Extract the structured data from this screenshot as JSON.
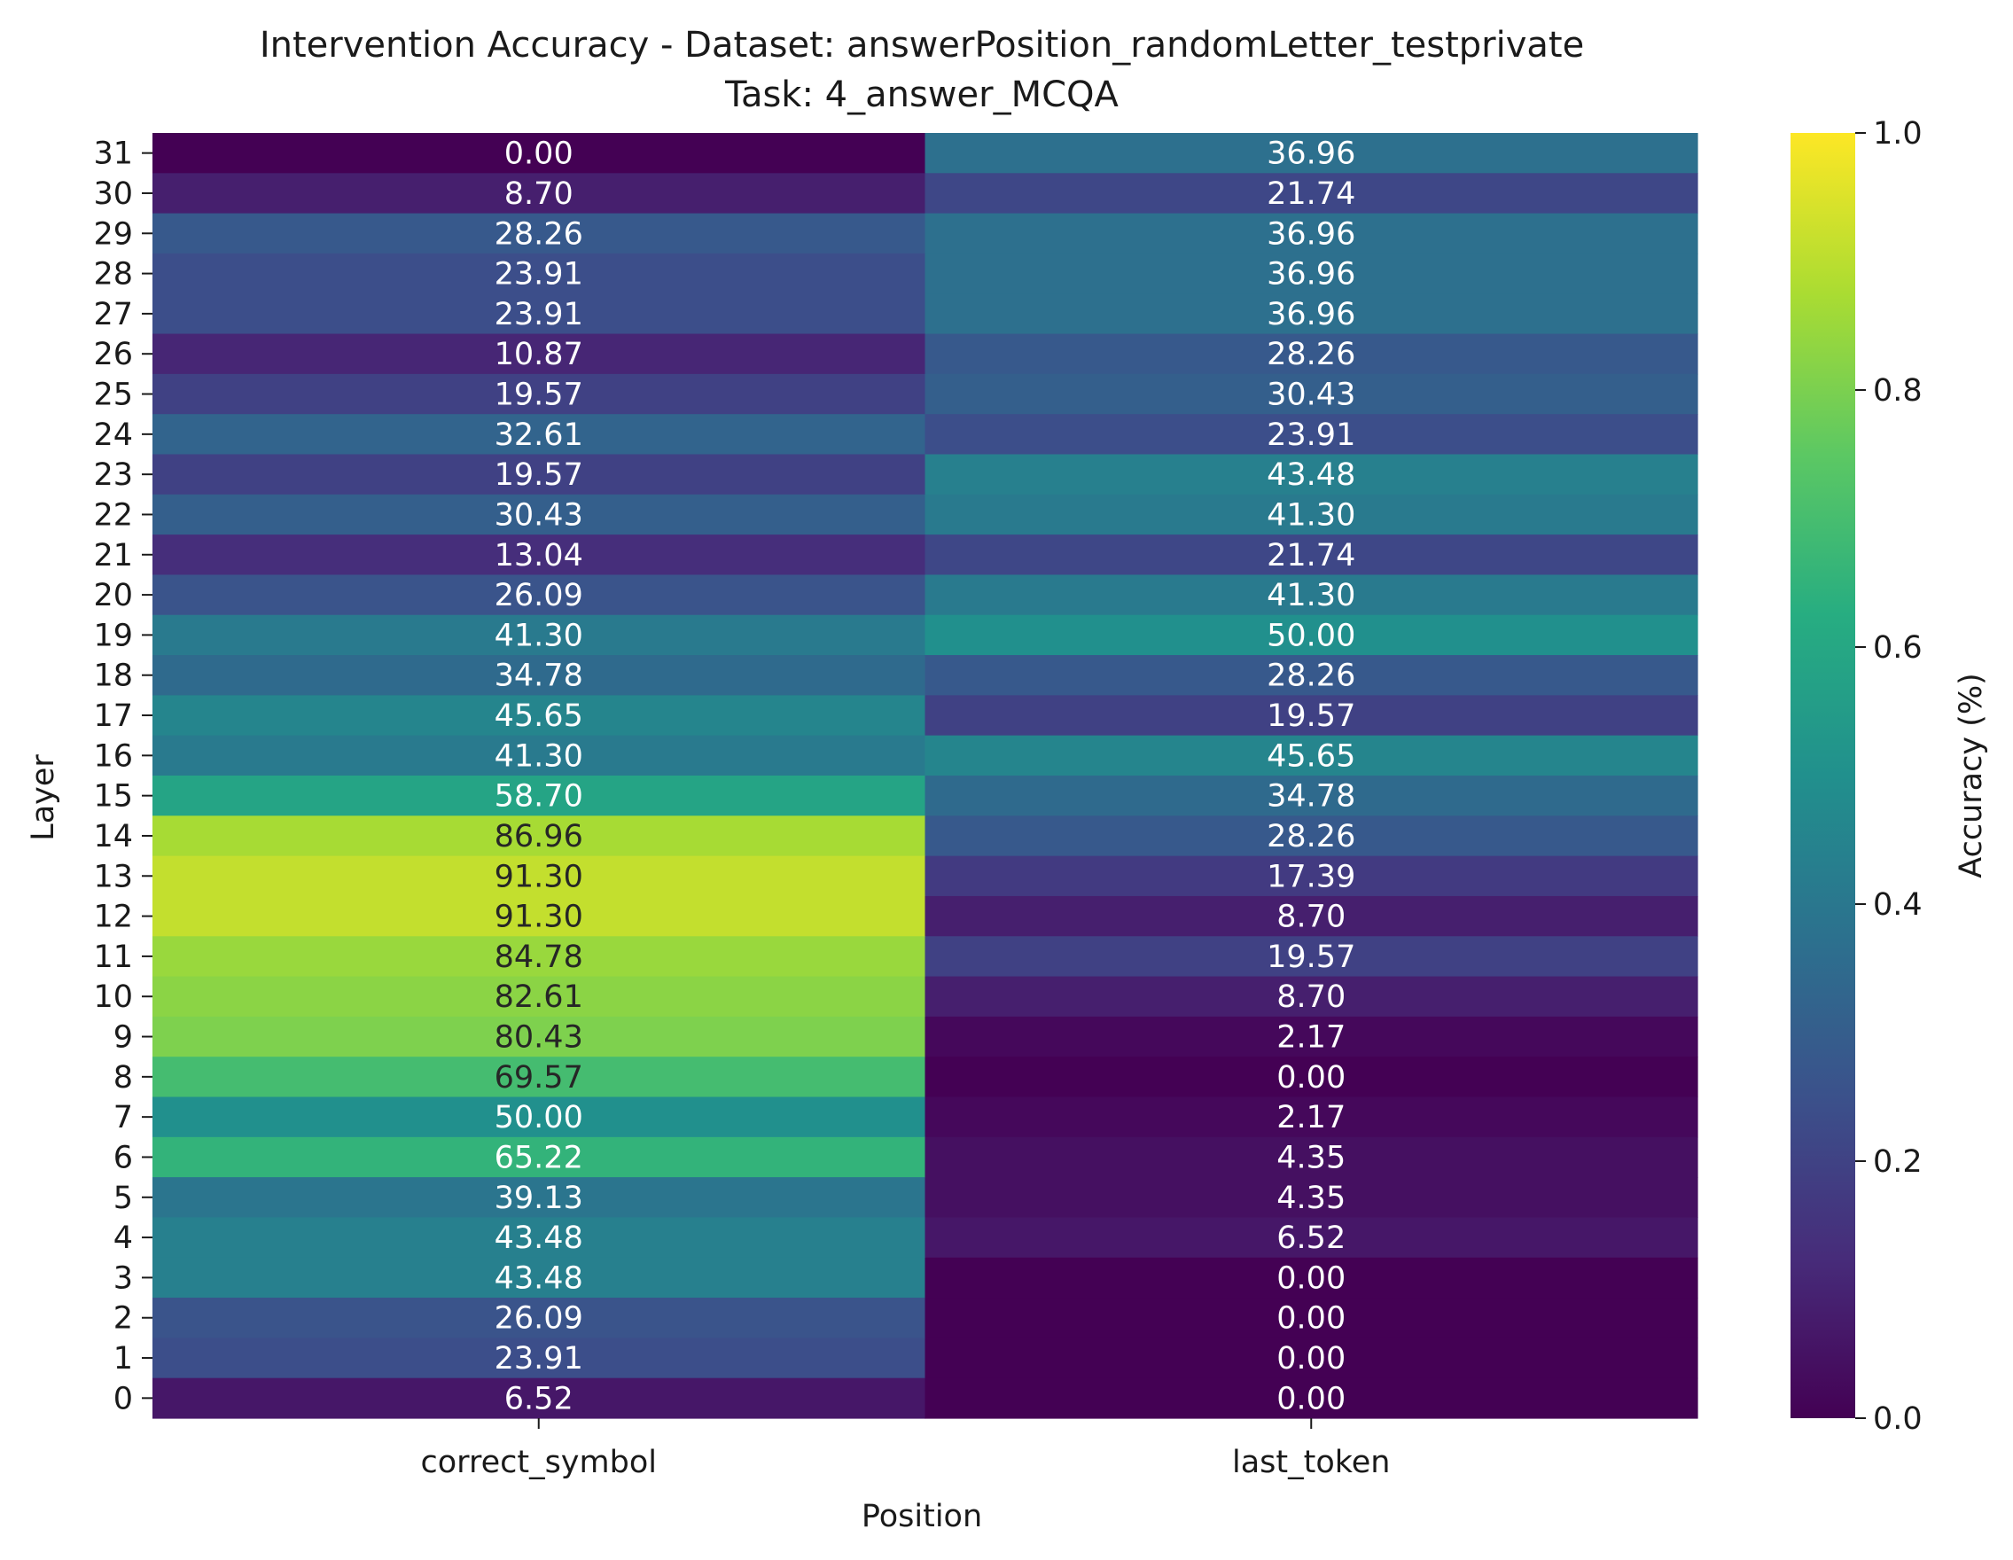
{
  "chart_data": {
    "type": "heatmap",
    "title_line1": "Intervention Accuracy - Dataset: answerPosition_randomLetter_testprivate",
    "title_line2": "Task: 4_answer_MCQA",
    "xlabel": "Position",
    "ylabel": "Layer",
    "colorbar_label": "Accuracy (%)",
    "colormap": "viridis",
    "vmin": 0.0,
    "vmax": 1.0,
    "colorbar_ticks": [
      "0.0",
      "0.2",
      "0.4",
      "0.6",
      "0.8",
      "1.0"
    ],
    "columns": [
      "correct_symbol",
      "last_token"
    ],
    "layers": [
      31,
      30,
      29,
      28,
      27,
      26,
      25,
      24,
      23,
      22,
      21,
      20,
      19,
      18,
      17,
      16,
      15,
      14,
      13,
      12,
      11,
      10,
      9,
      8,
      7,
      6,
      5,
      4,
      3,
      2,
      1,
      0
    ],
    "values": [
      [
        0.0,
        36.96
      ],
      [
        8.7,
        21.74
      ],
      [
        28.26,
        36.96
      ],
      [
        23.91,
        36.96
      ],
      [
        23.91,
        36.96
      ],
      [
        10.87,
        28.26
      ],
      [
        19.57,
        30.43
      ],
      [
        32.61,
        23.91
      ],
      [
        19.57,
        43.48
      ],
      [
        30.43,
        41.3
      ],
      [
        13.04,
        21.74
      ],
      [
        26.09,
        41.3
      ],
      [
        41.3,
        50.0
      ],
      [
        34.78,
        28.26
      ],
      [
        45.65,
        19.57
      ],
      [
        41.3,
        45.65
      ],
      [
        58.7,
        34.78
      ],
      [
        86.96,
        28.26
      ],
      [
        91.3,
        17.39
      ],
      [
        91.3,
        8.7
      ],
      [
        84.78,
        19.57
      ],
      [
        82.61,
        8.7
      ],
      [
        80.43,
        2.17
      ],
      [
        69.57,
        0.0
      ],
      [
        50.0,
        2.17
      ],
      [
        65.22,
        4.35
      ],
      [
        39.13,
        4.35
      ],
      [
        43.48,
        6.52
      ],
      [
        43.48,
        0.0
      ],
      [
        26.09,
        0.0
      ],
      [
        23.91,
        0.0
      ],
      [
        6.52,
        0.0
      ]
    ]
  }
}
